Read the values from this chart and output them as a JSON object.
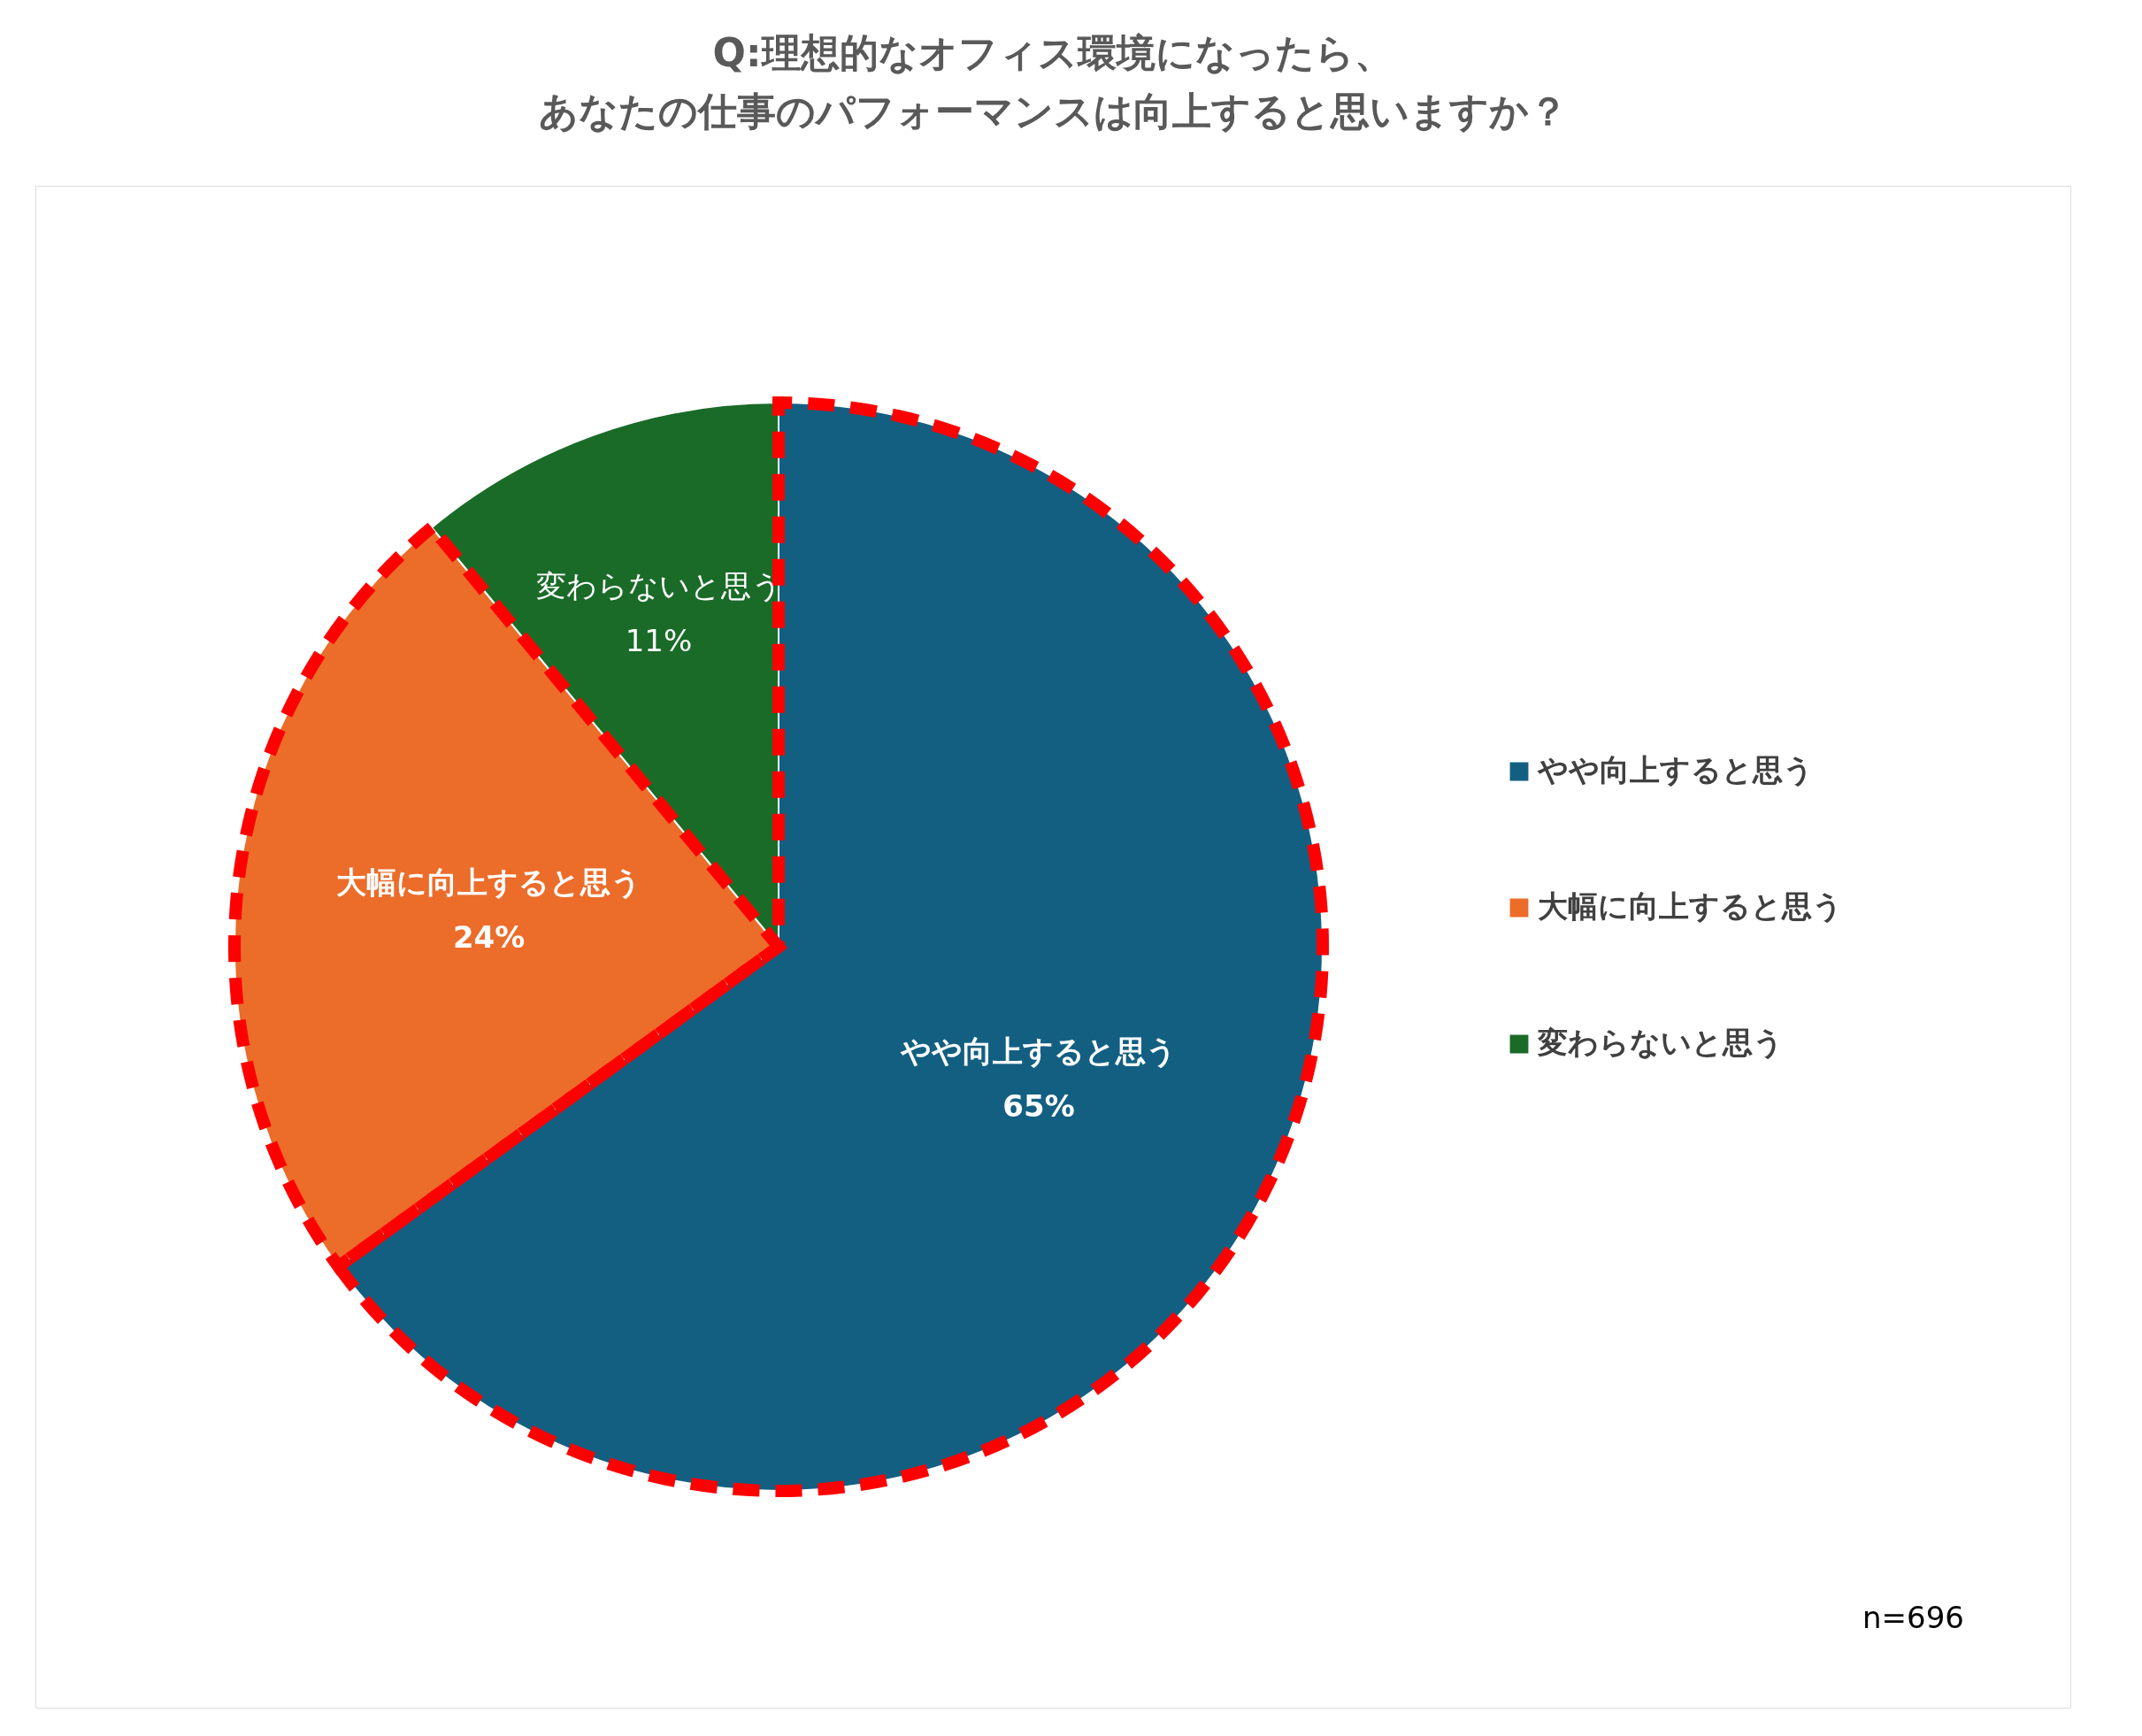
{
  "chart_data": {
    "type": "pie",
    "title": "Q:理想的なオフィス環境になったら、",
    "subtitle": "あなたの仕事のパフォーマンスは向上すると思いますか？",
    "categories": [
      "やや向上すると思う",
      "大幅に向上すると思う",
      "変わらないと思う"
    ],
    "values": [
      65,
      24,
      11
    ],
    "colors": [
      "#135f82",
      "#ec6c2a",
      "#1a6b28"
    ],
    "value_labels": [
      "65%",
      "24%",
      "11%"
    ],
    "legend": "right",
    "annotations": [
      "n=696"
    ]
  }
}
